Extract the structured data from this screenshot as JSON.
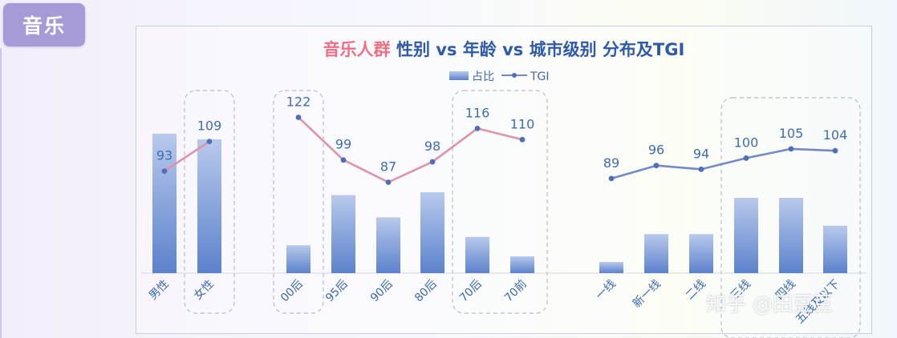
{
  "section_tag": "音乐",
  "chart_data": {
    "type": "bar",
    "title_part1": "音乐人群",
    "title_part2": "性别 vs 年龄 vs 城市级别 分布及TGI",
    "legend": {
      "bar_label": "占比",
      "line_label": "TGI",
      "position": "top"
    },
    "categories": [
      "男性",
      "女性",
      "00后",
      "95后",
      "90后",
      "80后",
      "70后",
      "70前",
      "一线",
      "新一线",
      "二线",
      "三线",
      "四线",
      "五线及以下"
    ],
    "groups": [
      {
        "name": "gender",
        "categories": [
          "男性",
          "女性"
        ]
      },
      {
        "name": "age",
        "categories": [
          "00后",
          "95后",
          "90后",
          "80后",
          "70后",
          "70前"
        ]
      },
      {
        "name": "city",
        "categories": [
          "一线",
          "新一线",
          "二线",
          "三线",
          "四线",
          "五线及以下"
        ]
      }
    ],
    "series": [
      {
        "name": "占比",
        "kind": "bar",
        "values": [
          50,
          48,
          10,
          28,
          20,
          29,
          13,
          6,
          4,
          14,
          14,
          27,
          27,
          17
        ]
      },
      {
        "name": "TGI",
        "kind": "line",
        "values": [
          93,
          109,
          122,
          99,
          87,
          98,
          116,
          110,
          89,
          96,
          94,
          100,
          105,
          104
        ]
      }
    ],
    "highlighted_categories": [
      "女性",
      "00后",
      "70后",
      "70前",
      "三线",
      "四线",
      "五线及以下"
    ],
    "ylim_bar": [
      0,
      52
    ],
    "ylim_tgi": [
      60,
      130
    ],
    "colors": {
      "bar_top": "#b8c9ec",
      "bar_bottom": "#5c82cc",
      "line_gender_age": "#e092a8",
      "line_city": "#7489c7",
      "data_label": "#3f6db0",
      "tick_label": "#3c6aad",
      "title_accent": "#ef6f82",
      "title_main": "#2e5aa8"
    }
  },
  "watermark": "知乎 @田豆豆"
}
